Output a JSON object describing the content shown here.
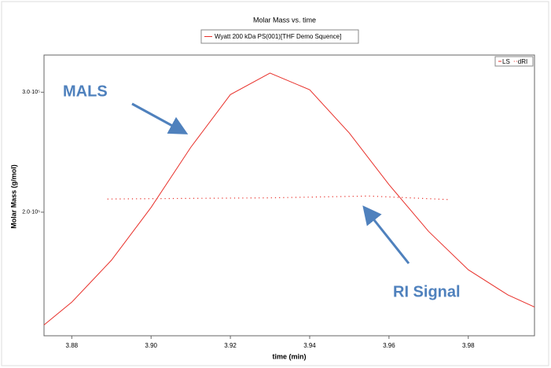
{
  "chart_data": {
    "type": "line",
    "title": "Molar Mass vs. time",
    "legend_title": "Wyatt 200 kDa PS(001)[THF Demo Squence]",
    "x_label": "time (min)",
    "y_label": "Molar Mass (g/mol)",
    "xlim": [
      3.873,
      3.9967
    ],
    "xticks": [
      {
        "value": 3.88,
        "label": "3.88"
      },
      {
        "value": 3.9,
        "label": "3.90"
      },
      {
        "value": 3.92,
        "label": "3.92"
      },
      {
        "value": 3.94,
        "label": "3.94"
      },
      {
        "value": 3.96,
        "label": "3.96"
      },
      {
        "value": 3.98,
        "label": "3.98"
      }
    ],
    "ylim": [
      97000,
      331000
    ],
    "yticks": [
      {
        "value": 200000,
        "label": "2.0·10⁵"
      },
      {
        "value": 300000,
        "label": "3.0·10⁵"
      }
    ],
    "legend": "top-right",
    "series": [
      {
        "name": "LS",
        "color": "#e8302a",
        "style": "solid",
        "x": [
          3.873,
          3.88,
          3.89,
          3.9,
          3.91,
          3.92,
          3.93,
          3.94,
          3.95,
          3.96,
          3.97,
          3.98,
          3.99,
          3.9967
        ],
        "values": [
          106000,
          125000,
          160000,
          204000,
          254000,
          298000,
          316000,
          302000,
          266000,
          223000,
          184000,
          152000,
          131000,
          121000
        ]
      },
      {
        "name": "dRI",
        "color": "#e8302a",
        "style": "dotted",
        "x": [
          3.889,
          3.91,
          3.93,
          3.955,
          3.975
        ],
        "values": [
          211000,
          211500,
          212000,
          213500,
          210500
        ]
      }
    ],
    "annotations": [
      {
        "text": "MALS"
      },
      {
        "text": "RI Signal"
      }
    ]
  }
}
